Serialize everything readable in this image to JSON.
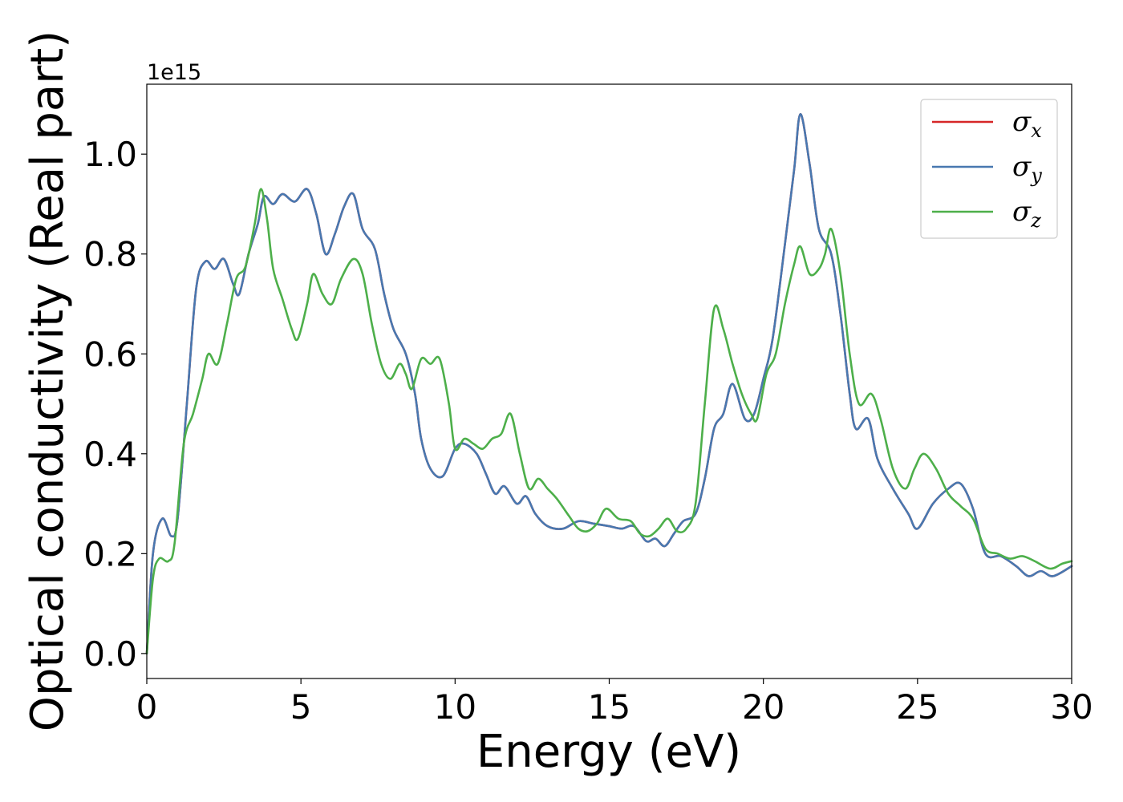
{
  "chart_data": {
    "type": "line",
    "title": "",
    "xlabel": "Energy (eV)",
    "ylabel": "Optical conductivity (Real part)",
    "y_offset_text": "1e15",
    "xlim": [
      0,
      30
    ],
    "ylim": [
      -0.05,
      1.14
    ],
    "x_ticks": [
      0,
      5,
      10,
      15,
      20,
      25,
      30
    ],
    "x_tick_labels": [
      "0",
      "5",
      "10",
      "15",
      "20",
      "25",
      "30"
    ],
    "y_ticks": [
      0.0,
      0.2,
      0.4,
      0.6,
      0.8,
      1.0
    ],
    "y_tick_labels": [
      "0.0",
      "0.2",
      "0.4",
      "0.6",
      "0.8",
      "1.0"
    ],
    "grid": false,
    "legend_position": "top-right",
    "series": [
      {
        "name": "σ",
        "subscript": "x",
        "color": "#d62728",
        "points": [
          [
            0,
            0
          ],
          [
            0.2,
            0.2
          ],
          [
            0.5,
            0.27
          ],
          [
            0.8,
            0.235
          ],
          [
            1.0,
            0.27
          ],
          [
            1.3,
            0.5
          ],
          [
            1.6,
            0.73
          ],
          [
            1.9,
            0.785
          ],
          [
            2.2,
            0.77
          ],
          [
            2.5,
            0.79
          ],
          [
            2.8,
            0.74
          ],
          [
            3.0,
            0.72
          ],
          [
            3.3,
            0.8
          ],
          [
            3.6,
            0.86
          ],
          [
            3.8,
            0.915
          ],
          [
            4.1,
            0.9
          ],
          [
            4.4,
            0.92
          ],
          [
            4.8,
            0.905
          ],
          [
            5.2,
            0.93
          ],
          [
            5.5,
            0.88
          ],
          [
            5.8,
            0.8
          ],
          [
            6.1,
            0.84
          ],
          [
            6.4,
            0.895
          ],
          [
            6.7,
            0.92
          ],
          [
            7.0,
            0.85
          ],
          [
            7.4,
            0.81
          ],
          [
            7.7,
            0.72
          ],
          [
            8.0,
            0.65
          ],
          [
            8.4,
            0.6
          ],
          [
            8.7,
            0.52
          ],
          [
            8.9,
            0.43
          ],
          [
            9.2,
            0.37
          ],
          [
            9.6,
            0.355
          ],
          [
            10.0,
            0.41
          ],
          [
            10.3,
            0.42
          ],
          [
            10.7,
            0.4
          ],
          [
            11.0,
            0.36
          ],
          [
            11.3,
            0.32
          ],
          [
            11.6,
            0.335
          ],
          [
            12.0,
            0.3
          ],
          [
            12.3,
            0.315
          ],
          [
            12.6,
            0.28
          ],
          [
            13.0,
            0.255
          ],
          [
            13.5,
            0.25
          ],
          [
            14.0,
            0.265
          ],
          [
            14.5,
            0.26
          ],
          [
            15.0,
            0.255
          ],
          [
            15.4,
            0.25
          ],
          [
            15.8,
            0.255
          ],
          [
            16.2,
            0.225
          ],
          [
            16.5,
            0.23
          ],
          [
            16.8,
            0.215
          ],
          [
            17.1,
            0.24
          ],
          [
            17.4,
            0.265
          ],
          [
            17.8,
            0.28
          ],
          [
            18.1,
            0.35
          ],
          [
            18.4,
            0.45
          ],
          [
            18.7,
            0.48
          ],
          [
            19.0,
            0.54
          ],
          [
            19.4,
            0.47
          ],
          [
            19.7,
            0.48
          ],
          [
            20.0,
            0.55
          ],
          [
            20.3,
            0.63
          ],
          [
            20.7,
            0.82
          ],
          [
            21.0,
            0.97
          ],
          [
            21.2,
            1.08
          ],
          [
            21.5,
            0.98
          ],
          [
            21.8,
            0.85
          ],
          [
            22.2,
            0.8
          ],
          [
            22.5,
            0.68
          ],
          [
            22.8,
            0.52
          ],
          [
            23.0,
            0.45
          ],
          [
            23.4,
            0.47
          ],
          [
            23.7,
            0.39
          ],
          [
            24.2,
            0.33
          ],
          [
            24.7,
            0.28
          ],
          [
            25.0,
            0.25
          ],
          [
            25.5,
            0.3
          ],
          [
            26.0,
            0.33
          ],
          [
            26.4,
            0.34
          ],
          [
            26.8,
            0.29
          ],
          [
            27.2,
            0.2
          ],
          [
            27.7,
            0.195
          ],
          [
            28.2,
            0.175
          ],
          [
            28.6,
            0.155
          ],
          [
            29.0,
            0.165
          ],
          [
            29.4,
            0.155
          ],
          [
            30.0,
            0.175
          ]
        ]
      },
      {
        "name": "σ",
        "subscript": "y",
        "color": "#4878b0",
        "points": [
          [
            0,
            0
          ],
          [
            0.2,
            0.2
          ],
          [
            0.5,
            0.27
          ],
          [
            0.8,
            0.235
          ],
          [
            1.0,
            0.27
          ],
          [
            1.3,
            0.5
          ],
          [
            1.6,
            0.73
          ],
          [
            1.9,
            0.785
          ],
          [
            2.2,
            0.77
          ],
          [
            2.5,
            0.79
          ],
          [
            2.8,
            0.74
          ],
          [
            3.0,
            0.72
          ],
          [
            3.3,
            0.8
          ],
          [
            3.6,
            0.86
          ],
          [
            3.8,
            0.915
          ],
          [
            4.1,
            0.9
          ],
          [
            4.4,
            0.92
          ],
          [
            4.8,
            0.905
          ],
          [
            5.2,
            0.93
          ],
          [
            5.5,
            0.88
          ],
          [
            5.8,
            0.8
          ],
          [
            6.1,
            0.84
          ],
          [
            6.4,
            0.895
          ],
          [
            6.7,
            0.92
          ],
          [
            7.0,
            0.85
          ],
          [
            7.4,
            0.81
          ],
          [
            7.7,
            0.72
          ],
          [
            8.0,
            0.65
          ],
          [
            8.4,
            0.6
          ],
          [
            8.7,
            0.52
          ],
          [
            8.9,
            0.43
          ],
          [
            9.2,
            0.37
          ],
          [
            9.6,
            0.355
          ],
          [
            10.0,
            0.41
          ],
          [
            10.3,
            0.42
          ],
          [
            10.7,
            0.4
          ],
          [
            11.0,
            0.36
          ],
          [
            11.3,
            0.32
          ],
          [
            11.6,
            0.335
          ],
          [
            12.0,
            0.3
          ],
          [
            12.3,
            0.315
          ],
          [
            12.6,
            0.28
          ],
          [
            13.0,
            0.255
          ],
          [
            13.5,
            0.25
          ],
          [
            14.0,
            0.265
          ],
          [
            14.5,
            0.26
          ],
          [
            15.0,
            0.255
          ],
          [
            15.4,
            0.25
          ],
          [
            15.8,
            0.255
          ],
          [
            16.2,
            0.225
          ],
          [
            16.5,
            0.23
          ],
          [
            16.8,
            0.215
          ],
          [
            17.1,
            0.24
          ],
          [
            17.4,
            0.265
          ],
          [
            17.8,
            0.28
          ],
          [
            18.1,
            0.35
          ],
          [
            18.4,
            0.45
          ],
          [
            18.7,
            0.48
          ],
          [
            19.0,
            0.54
          ],
          [
            19.4,
            0.47
          ],
          [
            19.7,
            0.48
          ],
          [
            20.0,
            0.55
          ],
          [
            20.3,
            0.63
          ],
          [
            20.7,
            0.82
          ],
          [
            21.0,
            0.97
          ],
          [
            21.2,
            1.08
          ],
          [
            21.5,
            0.98
          ],
          [
            21.8,
            0.85
          ],
          [
            22.2,
            0.8
          ],
          [
            22.5,
            0.68
          ],
          [
            22.8,
            0.52
          ],
          [
            23.0,
            0.45
          ],
          [
            23.4,
            0.47
          ],
          [
            23.7,
            0.39
          ],
          [
            24.2,
            0.33
          ],
          [
            24.7,
            0.28
          ],
          [
            25.0,
            0.25
          ],
          [
            25.5,
            0.3
          ],
          [
            26.0,
            0.33
          ],
          [
            26.4,
            0.34
          ],
          [
            26.8,
            0.29
          ],
          [
            27.2,
            0.2
          ],
          [
            27.7,
            0.195
          ],
          [
            28.2,
            0.175
          ],
          [
            28.6,
            0.155
          ],
          [
            29.0,
            0.165
          ],
          [
            29.4,
            0.155
          ],
          [
            30.0,
            0.175
          ]
        ]
      },
      {
        "name": "σ",
        "subscript": "z",
        "color": "#4daf4a",
        "points": [
          [
            0,
            0
          ],
          [
            0.2,
            0.15
          ],
          [
            0.4,
            0.19
          ],
          [
            0.7,
            0.185
          ],
          [
            0.9,
            0.22
          ],
          [
            1.2,
            0.42
          ],
          [
            1.5,
            0.48
          ],
          [
            1.8,
            0.55
          ],
          [
            2.0,
            0.6
          ],
          [
            2.3,
            0.58
          ],
          [
            2.6,
            0.66
          ],
          [
            2.9,
            0.75
          ],
          [
            3.2,
            0.775
          ],
          [
            3.5,
            0.86
          ],
          [
            3.7,
            0.93
          ],
          [
            3.9,
            0.87
          ],
          [
            4.1,
            0.77
          ],
          [
            4.4,
            0.71
          ],
          [
            4.7,
            0.65
          ],
          [
            4.9,
            0.63
          ],
          [
            5.2,
            0.7
          ],
          [
            5.4,
            0.76
          ],
          [
            5.7,
            0.72
          ],
          [
            6.0,
            0.7
          ],
          [
            6.3,
            0.75
          ],
          [
            6.7,
            0.79
          ],
          [
            7.0,
            0.76
          ],
          [
            7.3,
            0.66
          ],
          [
            7.6,
            0.58
          ],
          [
            7.9,
            0.55
          ],
          [
            8.2,
            0.58
          ],
          [
            8.4,
            0.56
          ],
          [
            8.6,
            0.53
          ],
          [
            8.9,
            0.59
          ],
          [
            9.2,
            0.58
          ],
          [
            9.5,
            0.59
          ],
          [
            9.8,
            0.5
          ],
          [
            10.0,
            0.41
          ],
          [
            10.3,
            0.43
          ],
          [
            10.6,
            0.42
          ],
          [
            10.9,
            0.41
          ],
          [
            11.2,
            0.43
          ],
          [
            11.5,
            0.44
          ],
          [
            11.8,
            0.48
          ],
          [
            12.1,
            0.4
          ],
          [
            12.4,
            0.33
          ],
          [
            12.7,
            0.35
          ],
          [
            13.0,
            0.33
          ],
          [
            13.3,
            0.31
          ],
          [
            13.7,
            0.275
          ],
          [
            14.0,
            0.25
          ],
          [
            14.3,
            0.245
          ],
          [
            14.6,
            0.26
          ],
          [
            14.9,
            0.29
          ],
          [
            15.3,
            0.27
          ],
          [
            15.7,
            0.265
          ],
          [
            16.0,
            0.24
          ],
          [
            16.3,
            0.235
          ],
          [
            16.6,
            0.25
          ],
          [
            16.9,
            0.27
          ],
          [
            17.2,
            0.245
          ],
          [
            17.5,
            0.25
          ],
          [
            17.8,
            0.3
          ],
          [
            18.1,
            0.5
          ],
          [
            18.4,
            0.69
          ],
          [
            18.7,
            0.65
          ],
          [
            19.0,
            0.58
          ],
          [
            19.3,
            0.52
          ],
          [
            19.6,
            0.48
          ],
          [
            19.8,
            0.47
          ],
          [
            20.1,
            0.56
          ],
          [
            20.4,
            0.6
          ],
          [
            20.7,
            0.7
          ],
          [
            21.0,
            0.78
          ],
          [
            21.2,
            0.815
          ],
          [
            21.5,
            0.76
          ],
          [
            21.8,
            0.77
          ],
          [
            22.0,
            0.8
          ],
          [
            22.2,
            0.85
          ],
          [
            22.5,
            0.76
          ],
          [
            22.8,
            0.6
          ],
          [
            23.1,
            0.5
          ],
          [
            23.5,
            0.52
          ],
          [
            23.8,
            0.47
          ],
          [
            24.2,
            0.37
          ],
          [
            24.6,
            0.33
          ],
          [
            24.9,
            0.37
          ],
          [
            25.2,
            0.4
          ],
          [
            25.6,
            0.37
          ],
          [
            26.0,
            0.32
          ],
          [
            26.4,
            0.295
          ],
          [
            26.8,
            0.27
          ],
          [
            27.2,
            0.21
          ],
          [
            27.6,
            0.2
          ],
          [
            28.0,
            0.19
          ],
          [
            28.4,
            0.195
          ],
          [
            28.8,
            0.185
          ],
          [
            29.3,
            0.17
          ],
          [
            29.7,
            0.18
          ],
          [
            30.0,
            0.185
          ]
        ]
      }
    ]
  }
}
